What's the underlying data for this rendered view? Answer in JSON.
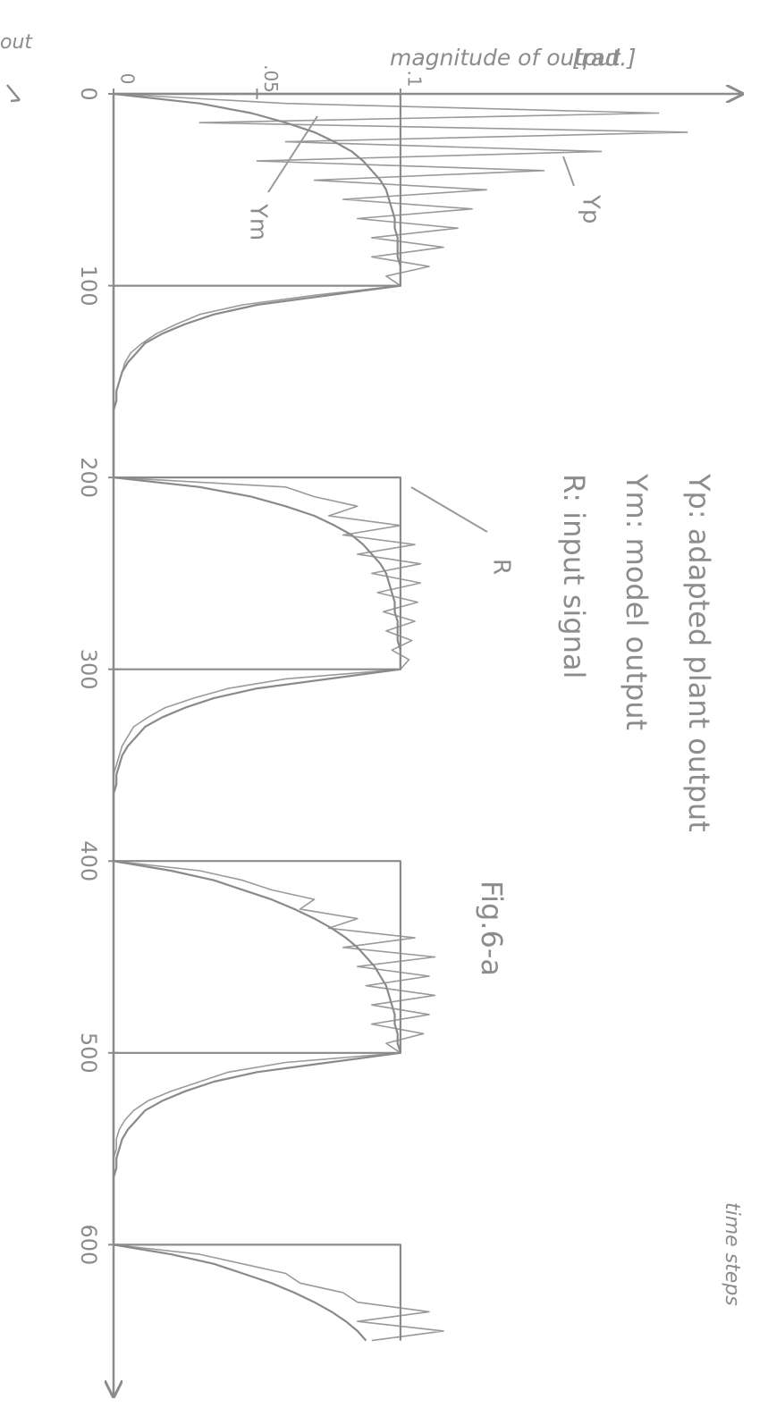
{
  "chart_data": {
    "type": "line",
    "title": "Fig.6-a",
    "x_label": "time steps",
    "y_label": "magnitude of output",
    "y_unit": "[rad.]",
    "corner_text": "out",
    "xlim": [
      0,
      680
    ],
    "xticks": [
      0,
      100,
      200,
      300,
      400,
      500,
      600
    ],
    "ylim": [
      0,
      0.22
    ],
    "yticks": [
      0,
      {
        "value": 0.05,
        "label": ".05"
      },
      {
        "value": 0.1,
        "label": ".1"
      }
    ],
    "grid": false,
    "series": [
      {
        "name": "Yp: adapted plant output",
        "label": "Yp",
        "color": "#9a9a9a",
        "x": [
          0,
          5,
          10,
          15,
          20,
          25,
          30,
          35,
          40,
          45,
          50,
          55,
          60,
          65,
          70,
          75,
          80,
          85,
          90,
          95,
          100,
          105,
          110,
          115,
          120,
          125,
          130,
          135,
          140,
          145,
          150,
          155,
          160,
          165,
          170,
          175,
          180,
          185,
          190,
          195,
          200,
          205,
          210,
          215,
          220,
          225,
          230,
          235,
          240,
          245,
          250,
          255,
          260,
          265,
          270,
          275,
          280,
          285,
          290,
          295,
          300,
          305,
          310,
          315,
          320,
          325,
          330,
          335,
          340,
          345,
          350,
          355,
          360,
          365,
          370,
          375,
          380,
          385,
          390,
          395,
          400,
          405,
          410,
          415,
          420,
          425,
          430,
          435,
          440,
          445,
          450,
          455,
          460,
          465,
          470,
          475,
          480,
          485,
          490,
          495,
          500,
          505,
          510,
          515,
          520,
          525,
          530,
          535,
          540,
          545,
          550,
          555,
          560,
          565,
          570,
          575,
          580,
          585,
          590,
          595,
          600,
          605,
          610,
          615,
          620,
          625,
          630,
          635,
          640,
          645,
          650
        ],
        "values": [
          0,
          0.06,
          0.19,
          0.03,
          0.2,
          0.06,
          0.17,
          0.05,
          0.15,
          0.07,
          0.13,
          0.08,
          0.125,
          0.085,
          0.12,
          0.09,
          0.115,
          0.09,
          0.11,
          0.095,
          0.1,
          0.07,
          0.045,
          0.03,
          0.022,
          0.015,
          0.01,
          0.006,
          0.004,
          0.003,
          0.002,
          0.001,
          0.001,
          0,
          0,
          0,
          0,
          0,
          0,
          0,
          0,
          0.06,
          0.07,
          0.085,
          0.075,
          0.1,
          0.08,
          0.105,
          0.085,
          0.107,
          0.09,
          0.107,
          0.092,
          0.106,
          0.094,
          0.105,
          0.095,
          0.104,
          0.097,
          0.103,
          0.1,
          0.06,
          0.04,
          0.028,
          0.018,
          0.012,
          0.007,
          0.005,
          0.003,
          0.002,
          0.001,
          0,
          0,
          0,
          0,
          0,
          0,
          0,
          0,
          0,
          0,
          0.03,
          0.045,
          0.055,
          0.07,
          0.065,
          0.085,
          0.075,
          0.105,
          0.08,
          0.112,
          0.085,
          0.11,
          0.088,
          0.112,
          0.09,
          0.11,
          0.09,
          0.108,
          0.095,
          0.1,
          0.06,
          0.04,
          0.03,
          0.02,
          0.012,
          0.007,
          0.004,
          0.002,
          0.001,
          0.001,
          0,
          0,
          0,
          0,
          0,
          0,
          0,
          0,
          0,
          0,
          0.03,
          0.045,
          0.06,
          0.065,
          0.08,
          0.085,
          0.11,
          0.085,
          0.115,
          0.09
        ]
      },
      {
        "name": "Ym: model output",
        "label": "Ym",
        "color": "#8a8a8a",
        "x": [
          0,
          5,
          10,
          15,
          20,
          25,
          30,
          35,
          40,
          45,
          50,
          55,
          60,
          65,
          70,
          75,
          80,
          85,
          90,
          95,
          100,
          105,
          110,
          115,
          120,
          125,
          130,
          135,
          140,
          145,
          150,
          155,
          160,
          165,
          170,
          175,
          180,
          185,
          190,
          195,
          200,
          205,
          210,
          215,
          220,
          225,
          230,
          235,
          240,
          245,
          250,
          255,
          260,
          265,
          270,
          275,
          280,
          285,
          290,
          295,
          300,
          305,
          310,
          315,
          320,
          325,
          330,
          335,
          340,
          345,
          350,
          355,
          360,
          365,
          370,
          375,
          380,
          385,
          390,
          395,
          400,
          405,
          410,
          415,
          420,
          425,
          430,
          435,
          440,
          445,
          450,
          455,
          460,
          465,
          470,
          475,
          480,
          485,
          490,
          495,
          500,
          505,
          510,
          515,
          520,
          525,
          530,
          535,
          540,
          545,
          550,
          555,
          560,
          565,
          570,
          575,
          580,
          585,
          590,
          595,
          600,
          605,
          610,
          615,
          620,
          625,
          630,
          635,
          640,
          645,
          650
        ],
        "values": [
          0,
          0.03,
          0.048,
          0.06,
          0.07,
          0.077,
          0.083,
          0.087,
          0.09,
          0.093,
          0.095,
          0.096,
          0.097,
          0.098,
          0.098,
          0.099,
          0.099,
          0.099,
          0.1,
          0.1,
          0.1,
          0.075,
          0.05,
          0.035,
          0.025,
          0.017,
          0.011,
          0.008,
          0.005,
          0.003,
          0.002,
          0.001,
          0.001,
          0,
          0,
          0,
          0,
          0,
          0,
          0,
          0,
          0.03,
          0.048,
          0.06,
          0.07,
          0.077,
          0.083,
          0.087,
          0.09,
          0.093,
          0.095,
          0.096,
          0.097,
          0.098,
          0.098,
          0.099,
          0.099,
          0.099,
          0.1,
          0.1,
          0.1,
          0.075,
          0.05,
          0.035,
          0.025,
          0.017,
          0.011,
          0.008,
          0.005,
          0.003,
          0.002,
          0.001,
          0.001,
          0,
          0,
          0,
          0,
          0,
          0,
          0,
          0,
          0.02,
          0.035,
          0.045,
          0.055,
          0.063,
          0.07,
          0.076,
          0.081,
          0.085,
          0.088,
          0.091,
          0.093,
          0.095,
          0.096,
          0.097,
          0.098,
          0.098,
          0.099,
          0.099,
          0.1,
          0.075,
          0.05,
          0.035,
          0.025,
          0.017,
          0.011,
          0.008,
          0.005,
          0.003,
          0.002,
          0.001,
          0.001,
          0,
          0,
          0,
          0,
          0,
          0,
          0,
          0,
          0.02,
          0.035,
          0.045,
          0.055,
          0.063,
          0.07,
          0.076,
          0.081,
          0.085,
          0.088
        ]
      },
      {
        "name": "R: input signal",
        "label": "R",
        "color": "#8a8a8a",
        "x": [
          0,
          0,
          100,
          100,
          200,
          200,
          300,
          300,
          400,
          400,
          500,
          500,
          600,
          600,
          650
        ],
        "values": [
          0,
          0.1,
          0.1,
          0,
          0,
          0.1,
          0.1,
          0,
          0,
          0.1,
          0.1,
          0,
          0,
          0.1,
          0.1
        ]
      }
    ]
  }
}
